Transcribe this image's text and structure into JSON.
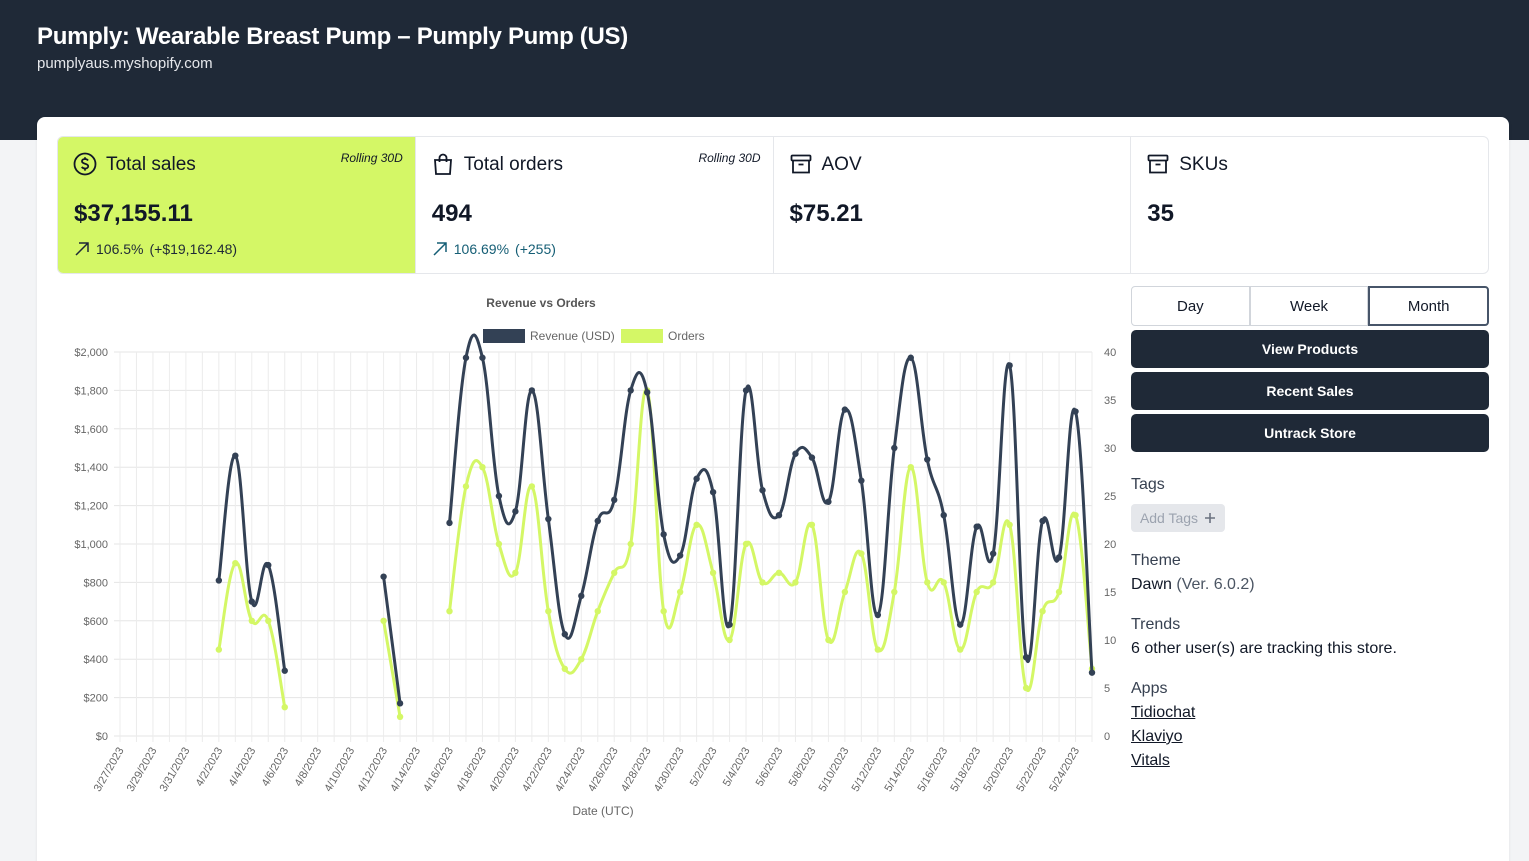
{
  "store": {
    "title": "Pumply: Wearable Breast Pump – Pumply Pump (US)",
    "domain": "pumplyaus.myshopify.com"
  },
  "stats": [
    {
      "label": "Total sales",
      "period": "Rolling 30D",
      "value": "$37,155.11",
      "change_pct": "106.5%",
      "change_abs": "(+$19,162.48)"
    },
    {
      "label": "Total orders",
      "period": "Rolling 30D",
      "value": "494",
      "change_pct": "106.69%",
      "change_abs": "(+255)"
    },
    {
      "label": "AOV",
      "value": "$75.21"
    },
    {
      "label": "SKUs",
      "value": "35"
    }
  ],
  "range_buttons": {
    "day": "Day",
    "week": "Week",
    "month": "Month",
    "selected": "Month"
  },
  "actions": {
    "view_products": "View Products",
    "recent_sales": "Recent Sales",
    "untrack": "Untrack Store"
  },
  "tags": {
    "title": "Tags",
    "add_label": "Add Tags",
    "add_icon": "plus-icon"
  },
  "theme": {
    "title": "Theme",
    "name": "Dawn",
    "version": "(Ver. 6.0.2)"
  },
  "trends": {
    "title": "Trends",
    "text": "6 other user(s) are tracking this store."
  },
  "apps": {
    "title": "Apps",
    "items": [
      "Tidiochat",
      "Klaviyo",
      "Vitals"
    ]
  },
  "colors": {
    "header": "#1f2937",
    "accent": "#d4f766",
    "revenue_line": "#334155",
    "orders_line": "#d4f766"
  },
  "chart_data": {
    "type": "line",
    "title": "Revenue vs Orders",
    "xlabel": "Date (UTC)",
    "y_left_ticks": [
      "$0",
      "$200",
      "$400",
      "$600",
      "$800",
      "$1,000",
      "$1,200",
      "$1,400",
      "$1,600",
      "$1,800",
      "$2,000"
    ],
    "y_right_ticks": [
      "0",
      "5",
      "10",
      "15",
      "20",
      "25",
      "30",
      "35",
      "40"
    ],
    "ylim_left": [
      0,
      2000
    ],
    "ylim_right": [
      0,
      40
    ],
    "grid": true,
    "legend": "top",
    "x_tick_labels": [
      "3/27/2023",
      "3/29/2023",
      "3/31/2023",
      "4/2/2023",
      "4/4/2023",
      "4/6/2023",
      "4/8/2023",
      "4/10/2023",
      "4/12/2023",
      "4/14/2023",
      "4/16/2023",
      "4/18/2023",
      "4/20/2023",
      "4/22/2023",
      "4/24/2023",
      "4/26/2023",
      "4/28/2023",
      "4/30/2023",
      "5/2/2023",
      "5/4/2023",
      "5/6/2023",
      "5/8/2023",
      "5/10/2023",
      "5/12/2023",
      "5/14/2023",
      "5/16/2023",
      "5/18/2023",
      "5/20/2023",
      "5/22/2023",
      "5/24/2023"
    ],
    "x": [
      "3/27/2023",
      "3/28/2023",
      "3/29/2023",
      "3/30/2023",
      "3/31/2023",
      "4/1/2023",
      "4/2/2023",
      "4/3/2023",
      "4/4/2023",
      "4/5/2023",
      "4/6/2023",
      "4/7/2023",
      "4/8/2023",
      "4/9/2023",
      "4/10/2023",
      "4/11/2023",
      "4/12/2023",
      "4/13/2023",
      "4/14/2023",
      "4/15/2023",
      "4/16/2023",
      "4/17/2023",
      "4/18/2023",
      "4/19/2023",
      "4/20/2023",
      "4/21/2023",
      "4/22/2023",
      "4/23/2023",
      "4/24/2023",
      "4/25/2023",
      "4/26/2023",
      "4/27/2023",
      "4/28/2023",
      "4/29/2023",
      "4/30/2023",
      "5/1/2023",
      "5/2/2023",
      "5/3/2023",
      "5/4/2023",
      "5/5/2023",
      "5/6/2023",
      "5/7/2023",
      "5/8/2023",
      "5/9/2023",
      "5/10/2023",
      "5/11/2023",
      "5/12/2023",
      "5/13/2023",
      "5/14/2023",
      "5/15/2023",
      "5/16/2023",
      "5/17/2023",
      "5/18/2023",
      "5/19/2023",
      "5/20/2023",
      "5/21/2023",
      "5/22/2023",
      "5/23/2023",
      "5/24/2023",
      "5/25/2023"
    ],
    "series": [
      {
        "name": "Revenue (USD)",
        "axis": "left",
        "values": [
          null,
          null,
          null,
          null,
          null,
          null,
          810,
          1460,
          700,
          890,
          340,
          null,
          null,
          null,
          null,
          null,
          830,
          170,
          null,
          null,
          1110,
          1970,
          1970,
          1250,
          1170,
          1800,
          1130,
          530,
          730,
          1120,
          1230,
          1800,
          1790,
          1050,
          940,
          1340,
          1270,
          580,
          1800,
          1280,
          1150,
          1470,
          1450,
          1220,
          1700,
          1330,
          630,
          1500,
          1970,
          1440,
          1150,
          580,
          1090,
          950,
          1930,
          410,
          1120,
          930,
          1690,
          330
        ]
      },
      {
        "name": "Orders",
        "axis": "right",
        "values": [
          null,
          null,
          null,
          null,
          null,
          null,
          9,
          18,
          12,
          12,
          3,
          null,
          null,
          null,
          null,
          null,
          12,
          2,
          null,
          null,
          13,
          26,
          28,
          20,
          17,
          26,
          13,
          7,
          8,
          13,
          17,
          20,
          36,
          13,
          15,
          22,
          17,
          10,
          20,
          16,
          17,
          16,
          22,
          10,
          15,
          19,
          9,
          15,
          28,
          16,
          16,
          9,
          15,
          16,
          22,
          5,
          13,
          15,
          23,
          7
        ]
      }
    ]
  }
}
